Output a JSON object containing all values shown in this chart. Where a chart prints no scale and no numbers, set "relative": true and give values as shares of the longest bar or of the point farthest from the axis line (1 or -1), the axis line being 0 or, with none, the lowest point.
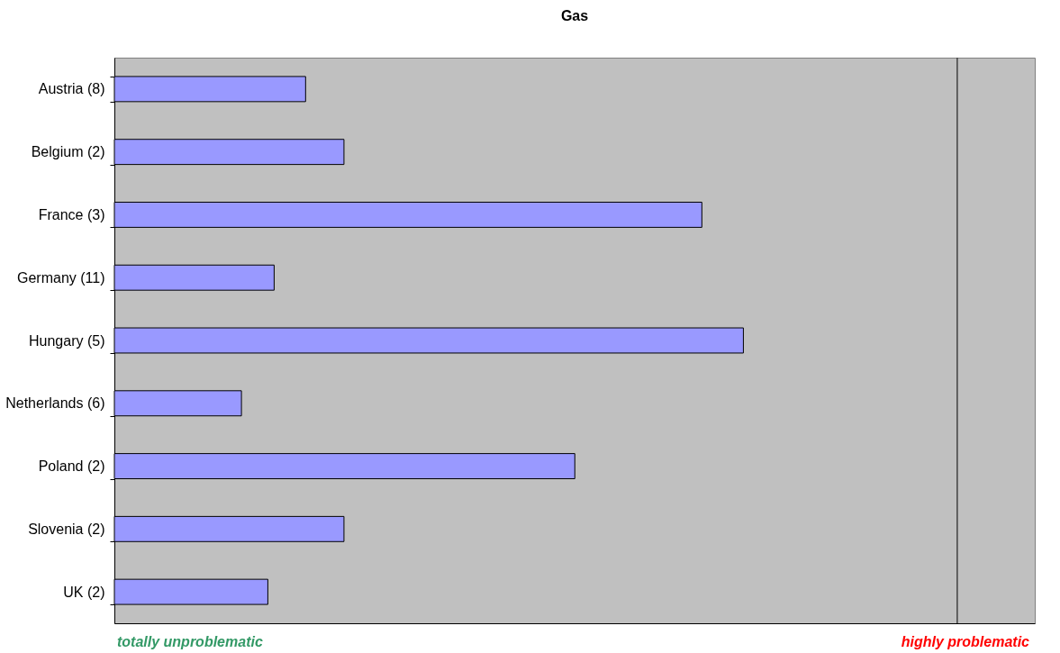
{
  "chart_data": {
    "type": "bar",
    "title": "Gas",
    "orientation": "horizontal",
    "relative": true,
    "categories": [
      "Austria (8)",
      "Belgium (2)",
      "France (3)",
      "Germany (11)",
      "Hungary (5)",
      "Netherlands (6)",
      "Poland (2)",
      "Slovenia (2)",
      "UK (2)"
    ],
    "values": [
      0.304,
      0.365,
      0.934,
      0.254,
      1,
      0.202,
      0.732,
      0.365,
      0.244
    ],
    "color": "#9999ff",
    "ref_lines": [
      {
        "axis": "x",
        "value": 1.34,
        "color": "#404040"
      }
    ],
    "annotations": [
      "totally unproblematic",
      "highly problematic"
    ],
    "line_style": "solid"
  }
}
